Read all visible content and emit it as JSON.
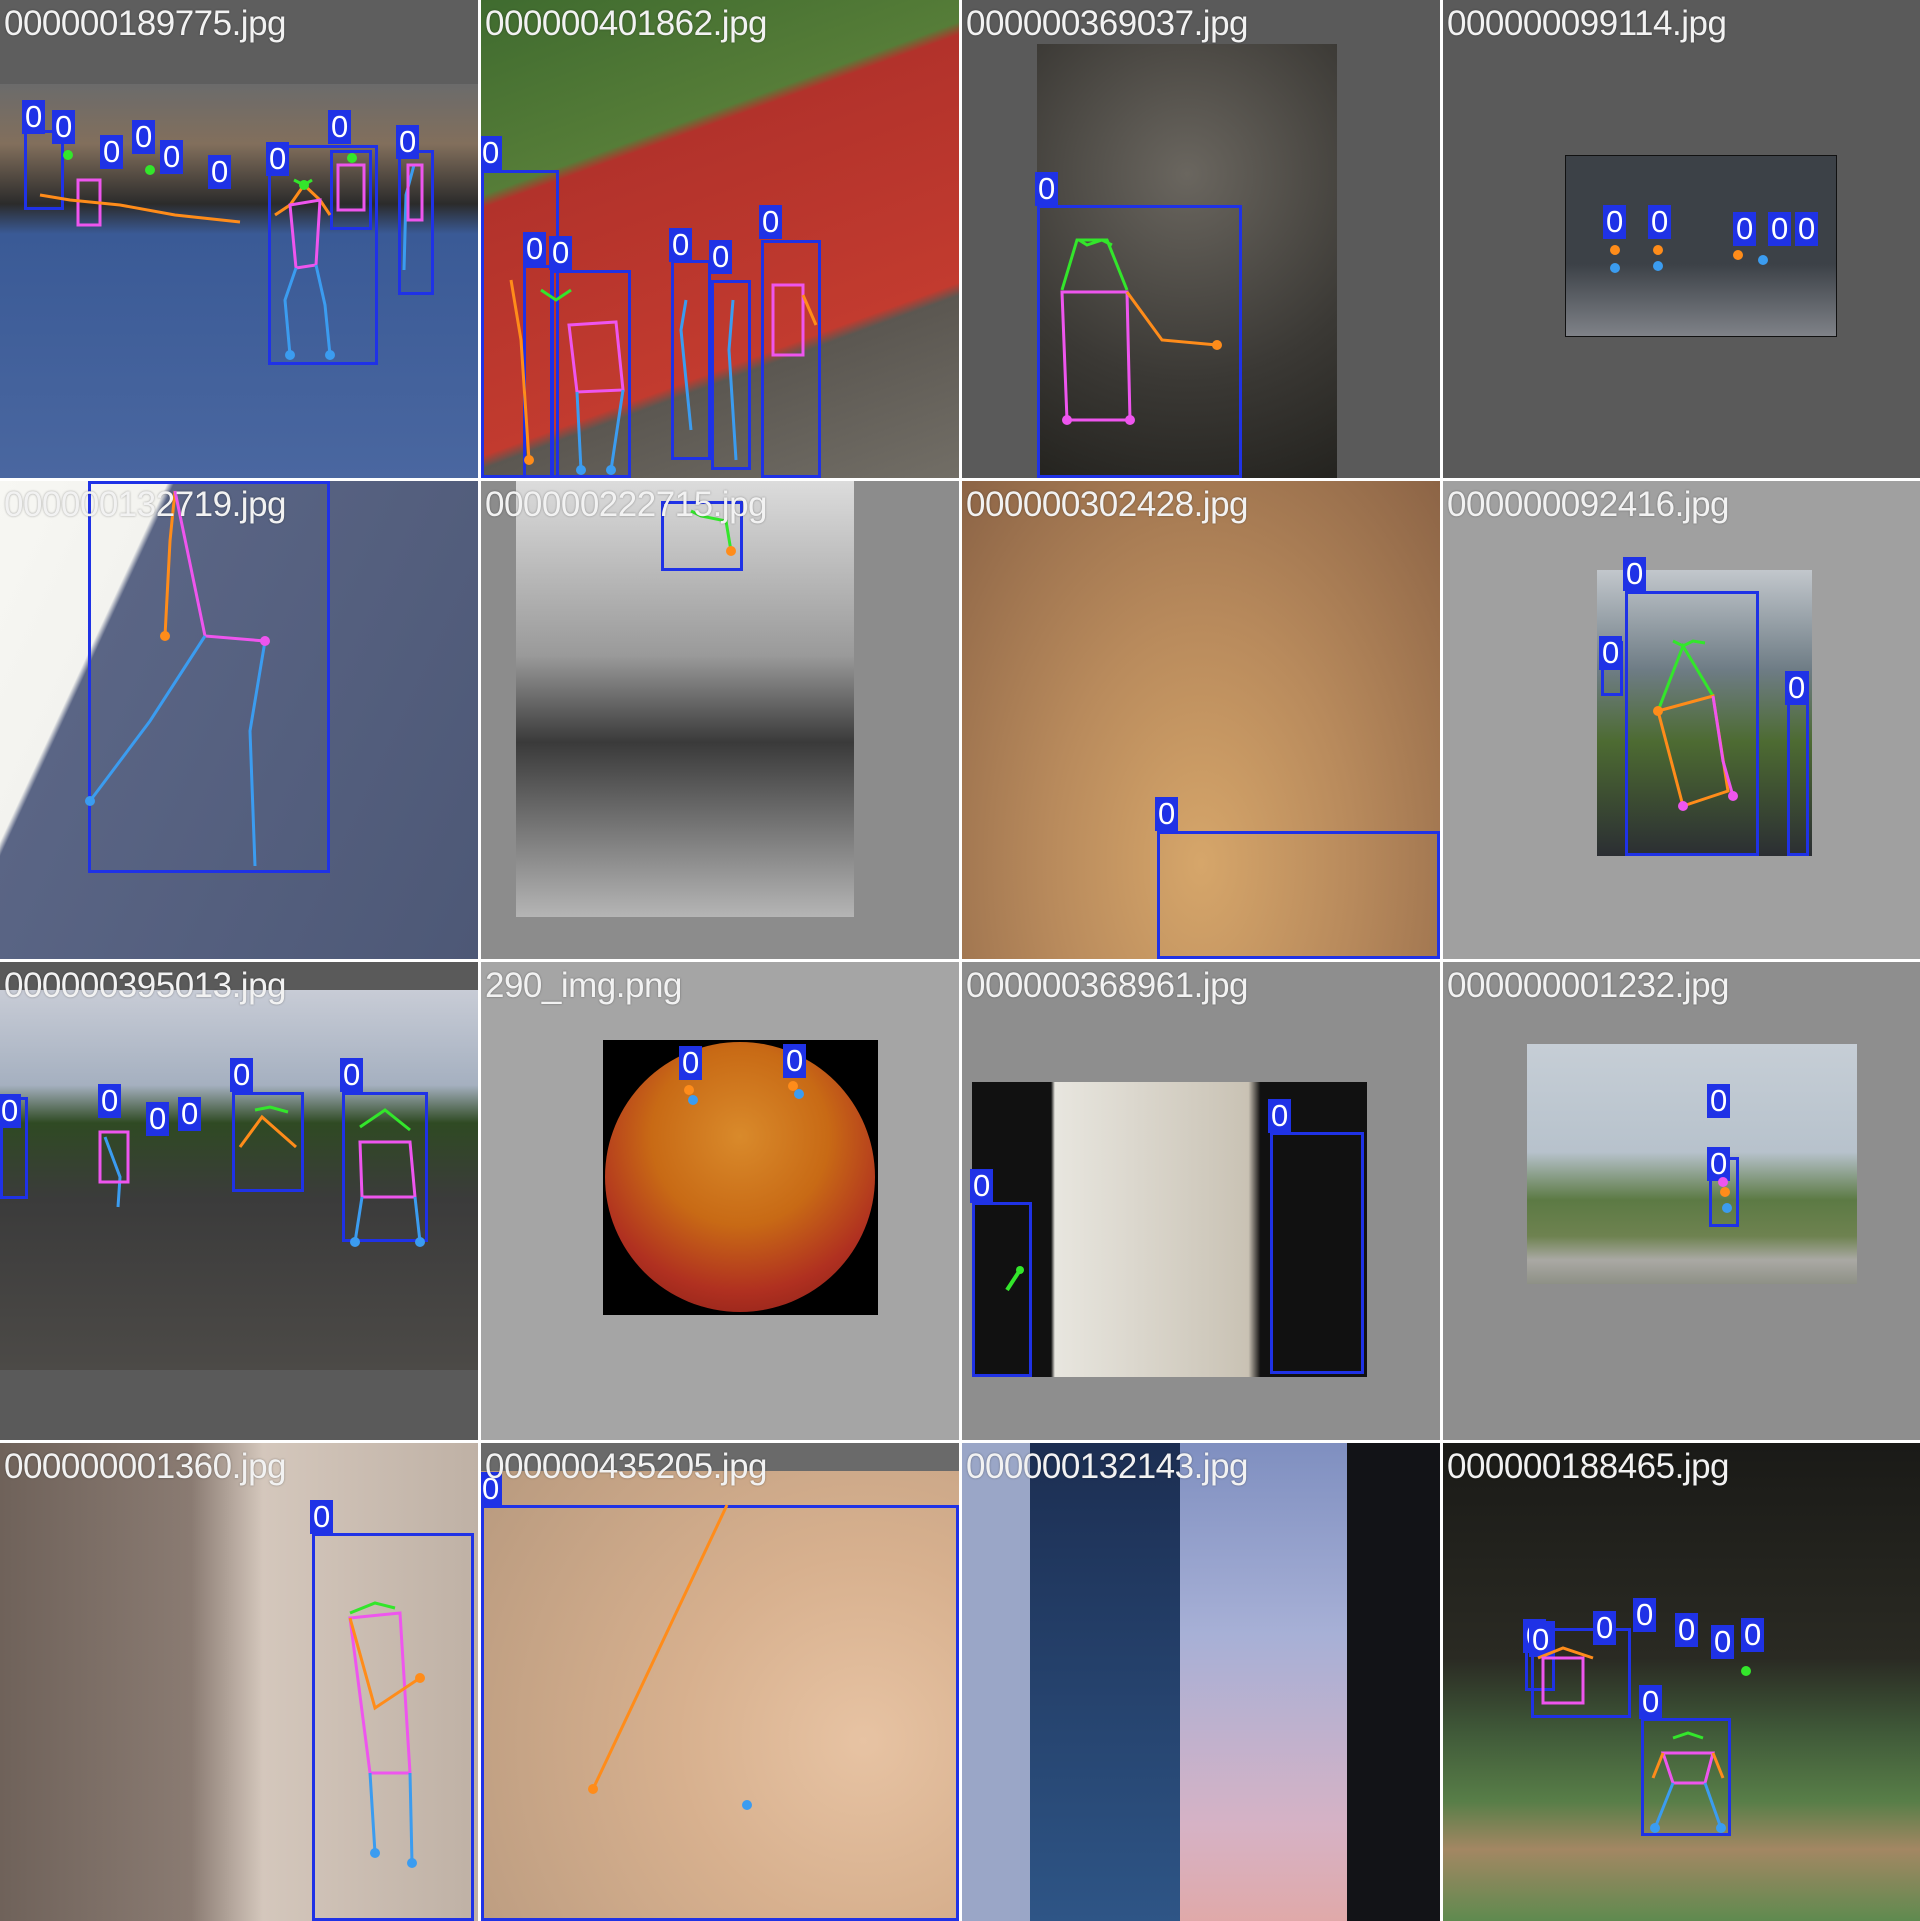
{
  "colors": {
    "box": "#1f32e6",
    "label_bg": "#1f32e6",
    "label_text": "#ffffff",
    "caption": "#f2f2f2",
    "face_limb": "#33e62b",
    "arm_limb": "#ff8c1a",
    "torso_limb": "#ee55ee",
    "leg_limb": "#3b9cf0"
  },
  "class_label": "0",
  "tiles": [
    {
      "name": "000000189775.jpg",
      "bg": "#5e5e5e",
      "scene": "#34496f"
    },
    {
      "name": "000000401862.jpg",
      "bg": "#5e5e5e",
      "scene": "#8a3a2e"
    },
    {
      "name": "000000369037.jpg",
      "bg": "#5a5a5a",
      "scene": "#3f3d3a"
    },
    {
      "name": "000000099114.jpg",
      "bg": "#5a5a5a",
      "scene": "#3a3d44"
    },
    {
      "name": "000000132719.jpg",
      "bg": "#f5f5f2",
      "scene": "#56627f"
    },
    {
      "name": "000000222715.jpg",
      "bg": "#8c8c8c",
      "scene": "#2b2b2b"
    },
    {
      "name": "000000302428.jpg",
      "bg": "#bcbcbc",
      "scene": "#b88a5c"
    },
    {
      "name": "000000092416.jpg",
      "bg": "#a0a0a0",
      "scene": "#556b3a"
    },
    {
      "name": "000000395013.jpg",
      "bg": "#5a5a5a",
      "scene": "#3d3b38"
    },
    {
      "name": "290_img.png",
      "bg": "#a5a5a5",
      "scene": "#000000"
    },
    {
      "name": "000000368961.jpg",
      "bg": "#8e8e8e",
      "scene": "#c9c2b4"
    },
    {
      "name": "000000001232.jpg",
      "bg": "#8e8e8e",
      "scene": "#708060"
    },
    {
      "name": "000000001360.jpg",
      "bg": "#c9b8ad",
      "scene": "#7b6a61"
    },
    {
      "name": "000000435205.jpg",
      "bg": "#6a6a6a",
      "scene": "#d9c0a3"
    },
    {
      "name": "000000132143.jpg",
      "bg": "#9aa6c7",
      "scene": "#233c66"
    },
    {
      "name": "000000188465.jpg",
      "bg": "#3a4a35",
      "scene": "#1e2a1c"
    }
  ]
}
